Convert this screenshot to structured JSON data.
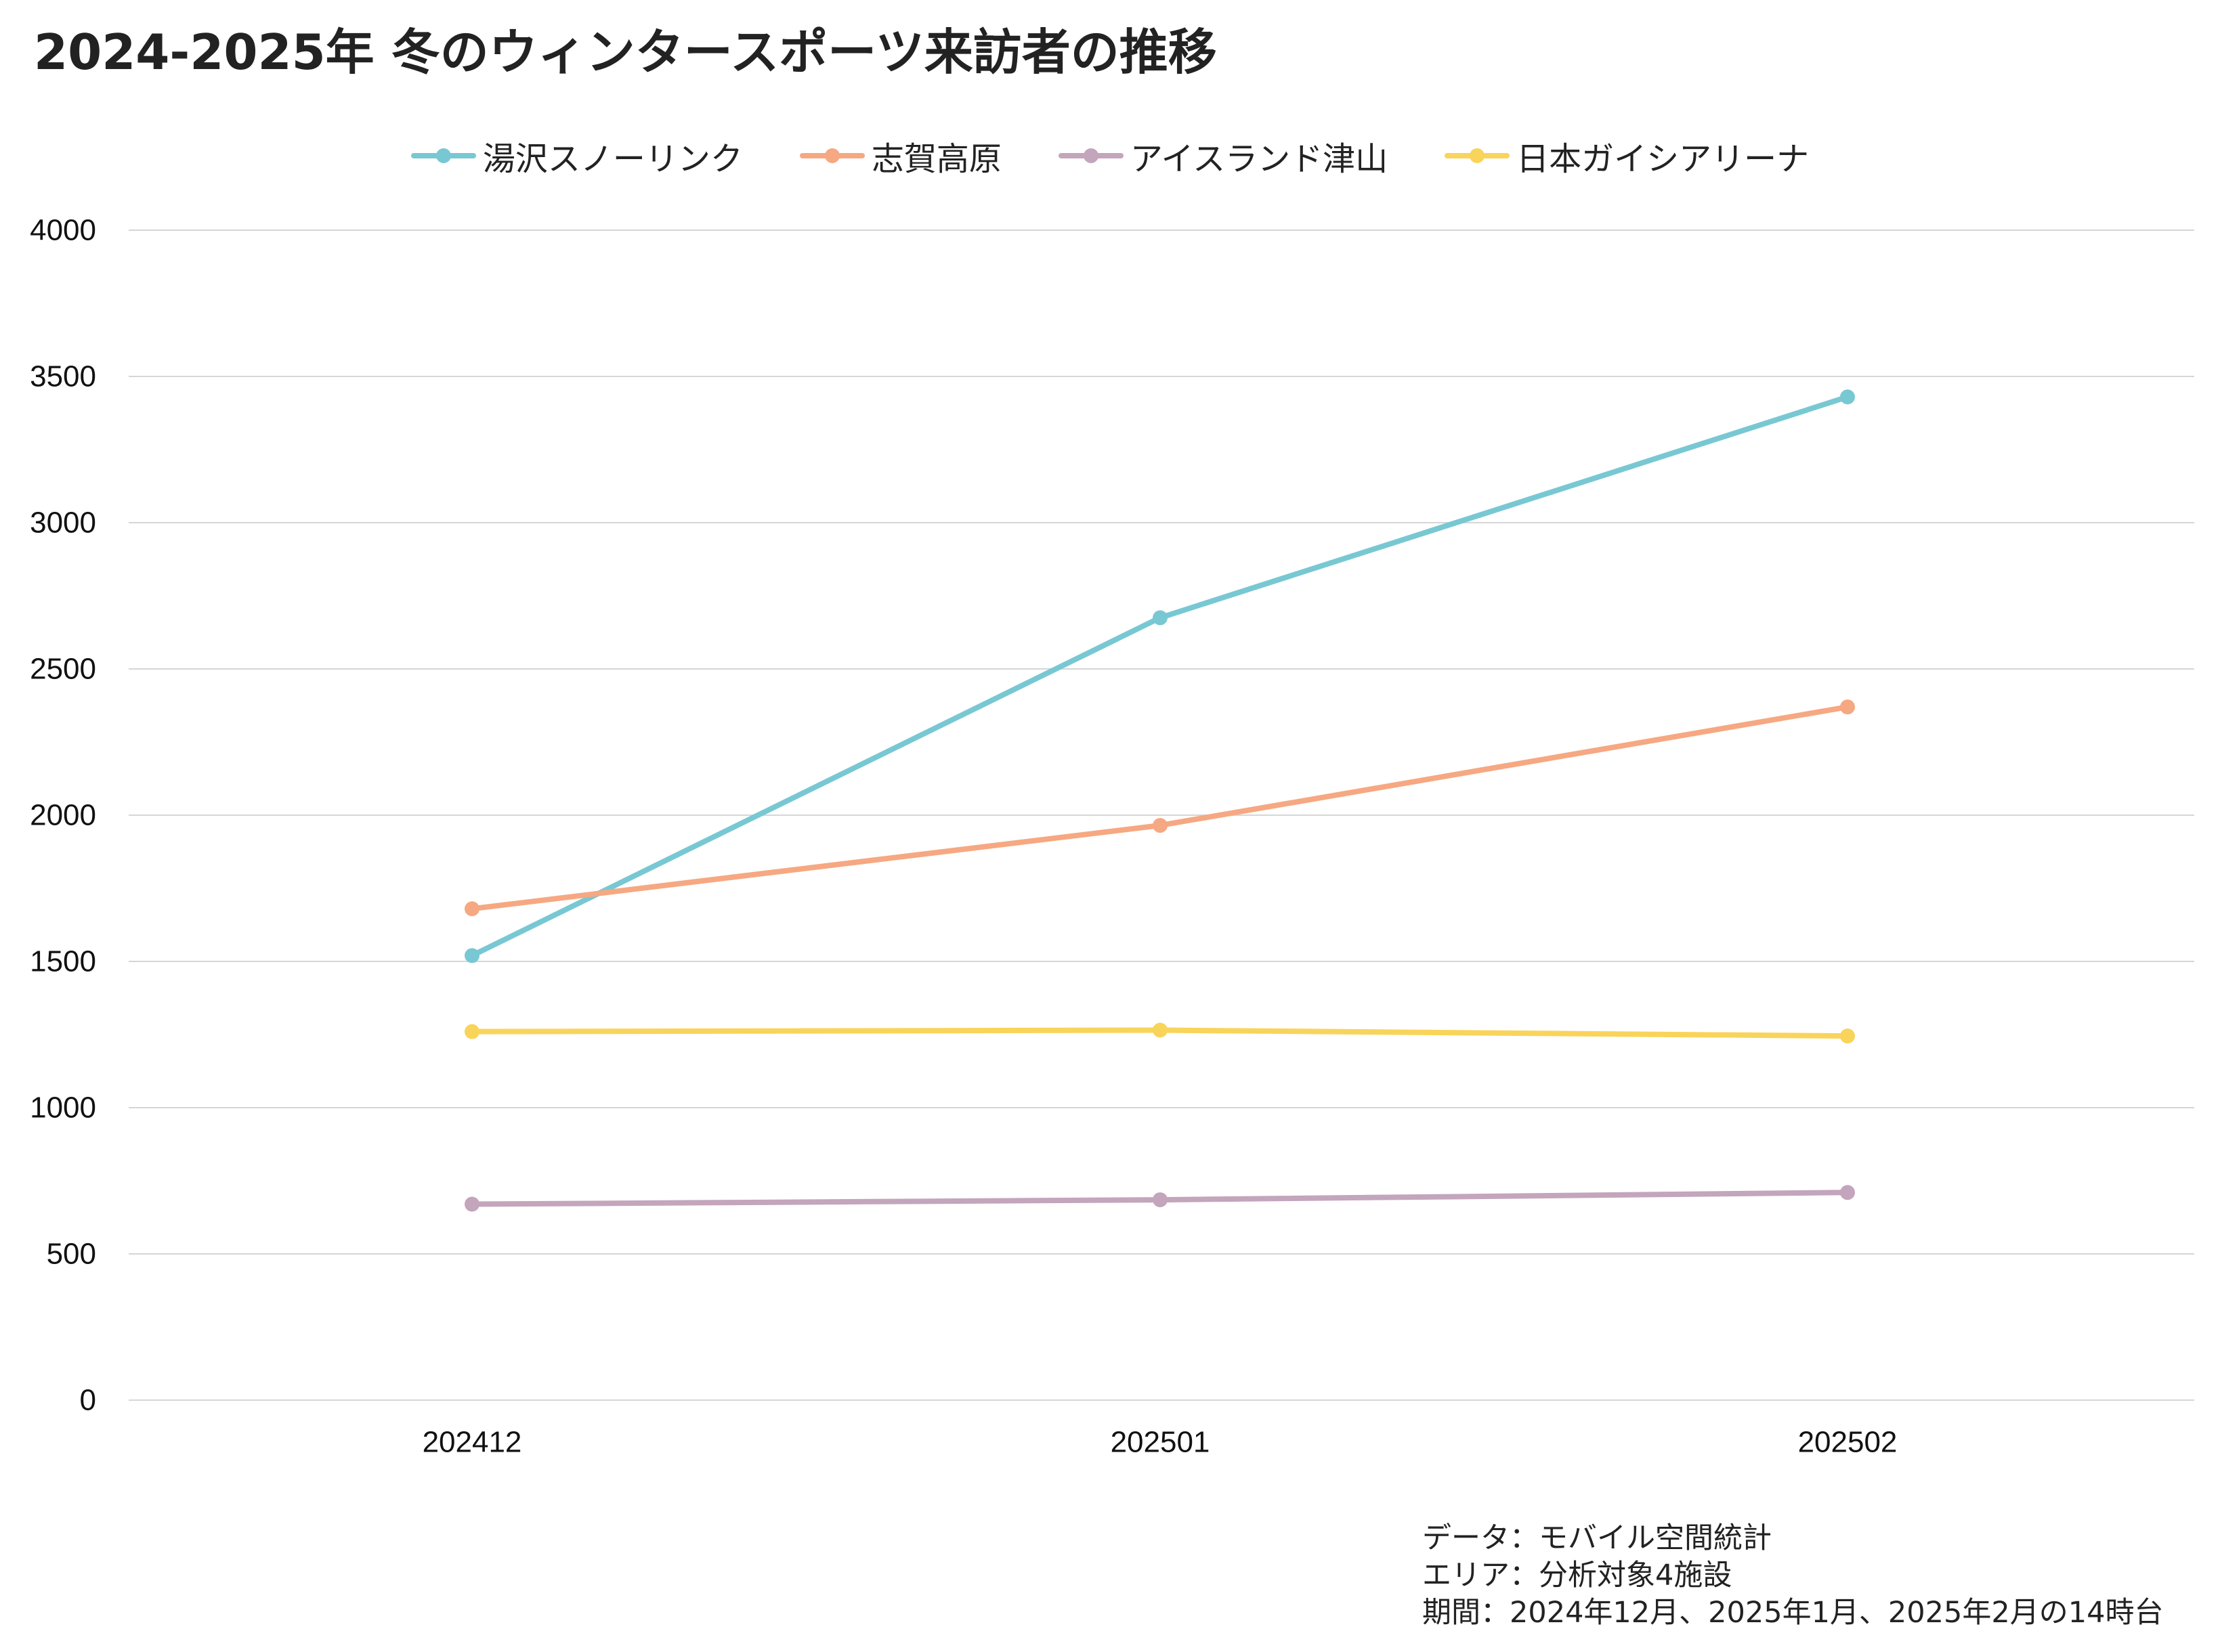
{
  "title": "2024-2025年 冬のウィンタースポーツ来訪者の推移",
  "footnote": {
    "source": "データ：モバイル空間統計",
    "area": "エリア：分析対象4施設",
    "period": "期間：2024年12月、2025年1月、2025年2月の14時台"
  },
  "chart_data": {
    "type": "line",
    "categories": [
      "202412",
      "202501",
      "202502"
    ],
    "ylim": [
      0,
      4000
    ],
    "yticks": [
      0,
      500,
      1000,
      1500,
      2000,
      2500,
      3000,
      3500,
      4000
    ],
    "grid": true,
    "legend_position": "top-center",
    "series": [
      {
        "name": "湯沢スノーリンク",
        "color": "#78C8D3",
        "values": [
          1520,
          2675,
          3430
        ]
      },
      {
        "name": "志賀高原",
        "color": "#F6A882",
        "values": [
          1680,
          1965,
          2370
        ]
      },
      {
        "name": "アイスランド津山",
        "color": "#C3A5BC",
        "values": [
          670,
          685,
          710
        ]
      },
      {
        "name": "日本ガイシアリーナ",
        "color": "#F9D45A",
        "values": [
          1260,
          1265,
          1245
        ]
      }
    ]
  }
}
